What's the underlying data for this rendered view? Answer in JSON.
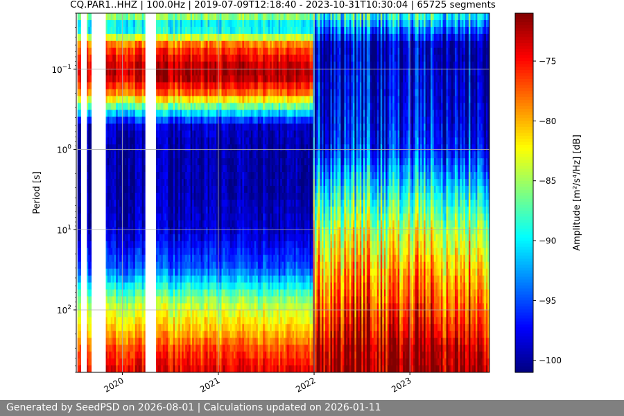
{
  "chart_data": {
    "type": "heatmap",
    "title": "CQ.PAR1..HHZ | 100.0Hz | 2019-07-09T12:18:40 - 2023-10-31T10:30:04 | 65725 segments",
    "x_range": [
      "2019-07-09T12:18:40",
      "2023-10-31T10:30:04"
    ],
    "x_ticks": [
      {
        "date": "2020-01-01",
        "label": "2020"
      },
      {
        "date": "2021-01-01",
        "label": "2021"
      },
      {
        "date": "2022-01-01",
        "label": "2022"
      },
      {
        "date": "2023-01-01",
        "label": "2023"
      }
    ],
    "ylabel": "Period [s]",
    "y_scale": "log",
    "y_inverted": true,
    "ylim": [
      0.02,
      600
    ],
    "y_ticks": [
      {
        "value": 0.1,
        "base": "10",
        "exp": "−1"
      },
      {
        "value": 1,
        "base": "10",
        "exp": "0"
      },
      {
        "value": 10,
        "base": "10",
        "exp": "1"
      },
      {
        "value": 100,
        "base": "10",
        "exp": "2"
      }
    ],
    "grid": true,
    "colorbar": {
      "label": "Amplitude [m²/s⁴/Hz] [dB]",
      "colormap": "jet",
      "range": [
        -101,
        -71
      ],
      "ticks": [
        -75,
        -80,
        -85,
        -90,
        -95,
        -100
      ]
    },
    "data_gaps": [
      [
        "2019-07-09",
        "2019-07-14"
      ],
      [
        "2019-07-28",
        "2019-08-19"
      ],
      [
        "2019-09-06",
        "2019-10-30"
      ],
      [
        "2020-03-29",
        "2020-05-08"
      ]
    ],
    "period_profiles": [
      {
        "from": "2019-07-09",
        "to": "2020-03-29",
        "periods": [
          0.02,
          0.03,
          0.05,
          0.08,
          0.12,
          0.2,
          0.5,
          1,
          3,
          10,
          30,
          80,
          200,
          300,
          600
        ],
        "db": [
          -84,
          -92,
          -78,
          -74,
          -73,
          -79,
          -99,
          -100,
          -100,
          -99,
          -95,
          -85,
          -80,
          -77,
          -74
        ]
      },
      {
        "from": "2020-05-08",
        "to": "2021-12-28",
        "periods": [
          0.02,
          0.03,
          0.05,
          0.08,
          0.12,
          0.2,
          0.5,
          1,
          3,
          10,
          30,
          80,
          200,
          300,
          600
        ],
        "db": [
          -84,
          -92,
          -78,
          -74,
          -72,
          -78,
          -99,
          -100,
          -100,
          -99,
          -95,
          -85,
          -80,
          -77,
          -74
        ]
      },
      {
        "from": "2021-12-28",
        "to": "2023-10-31",
        "periods": [
          0.02,
          0.03,
          0.05,
          0.08,
          0.12,
          0.2,
          0.5,
          1,
          3,
          10,
          30,
          80,
          200,
          300,
          600
        ],
        "db": [
          -88,
          -93,
          -99,
          -99,
          -98,
          -98,
          -97,
          -96,
          -90,
          -84,
          -80,
          -77,
          -74,
          -72,
          -71
        ]
      }
    ]
  },
  "footer": {
    "text": "Generated by SeedPSD on 2026-08-01 | Calculations updated on 2026-01-11"
  }
}
